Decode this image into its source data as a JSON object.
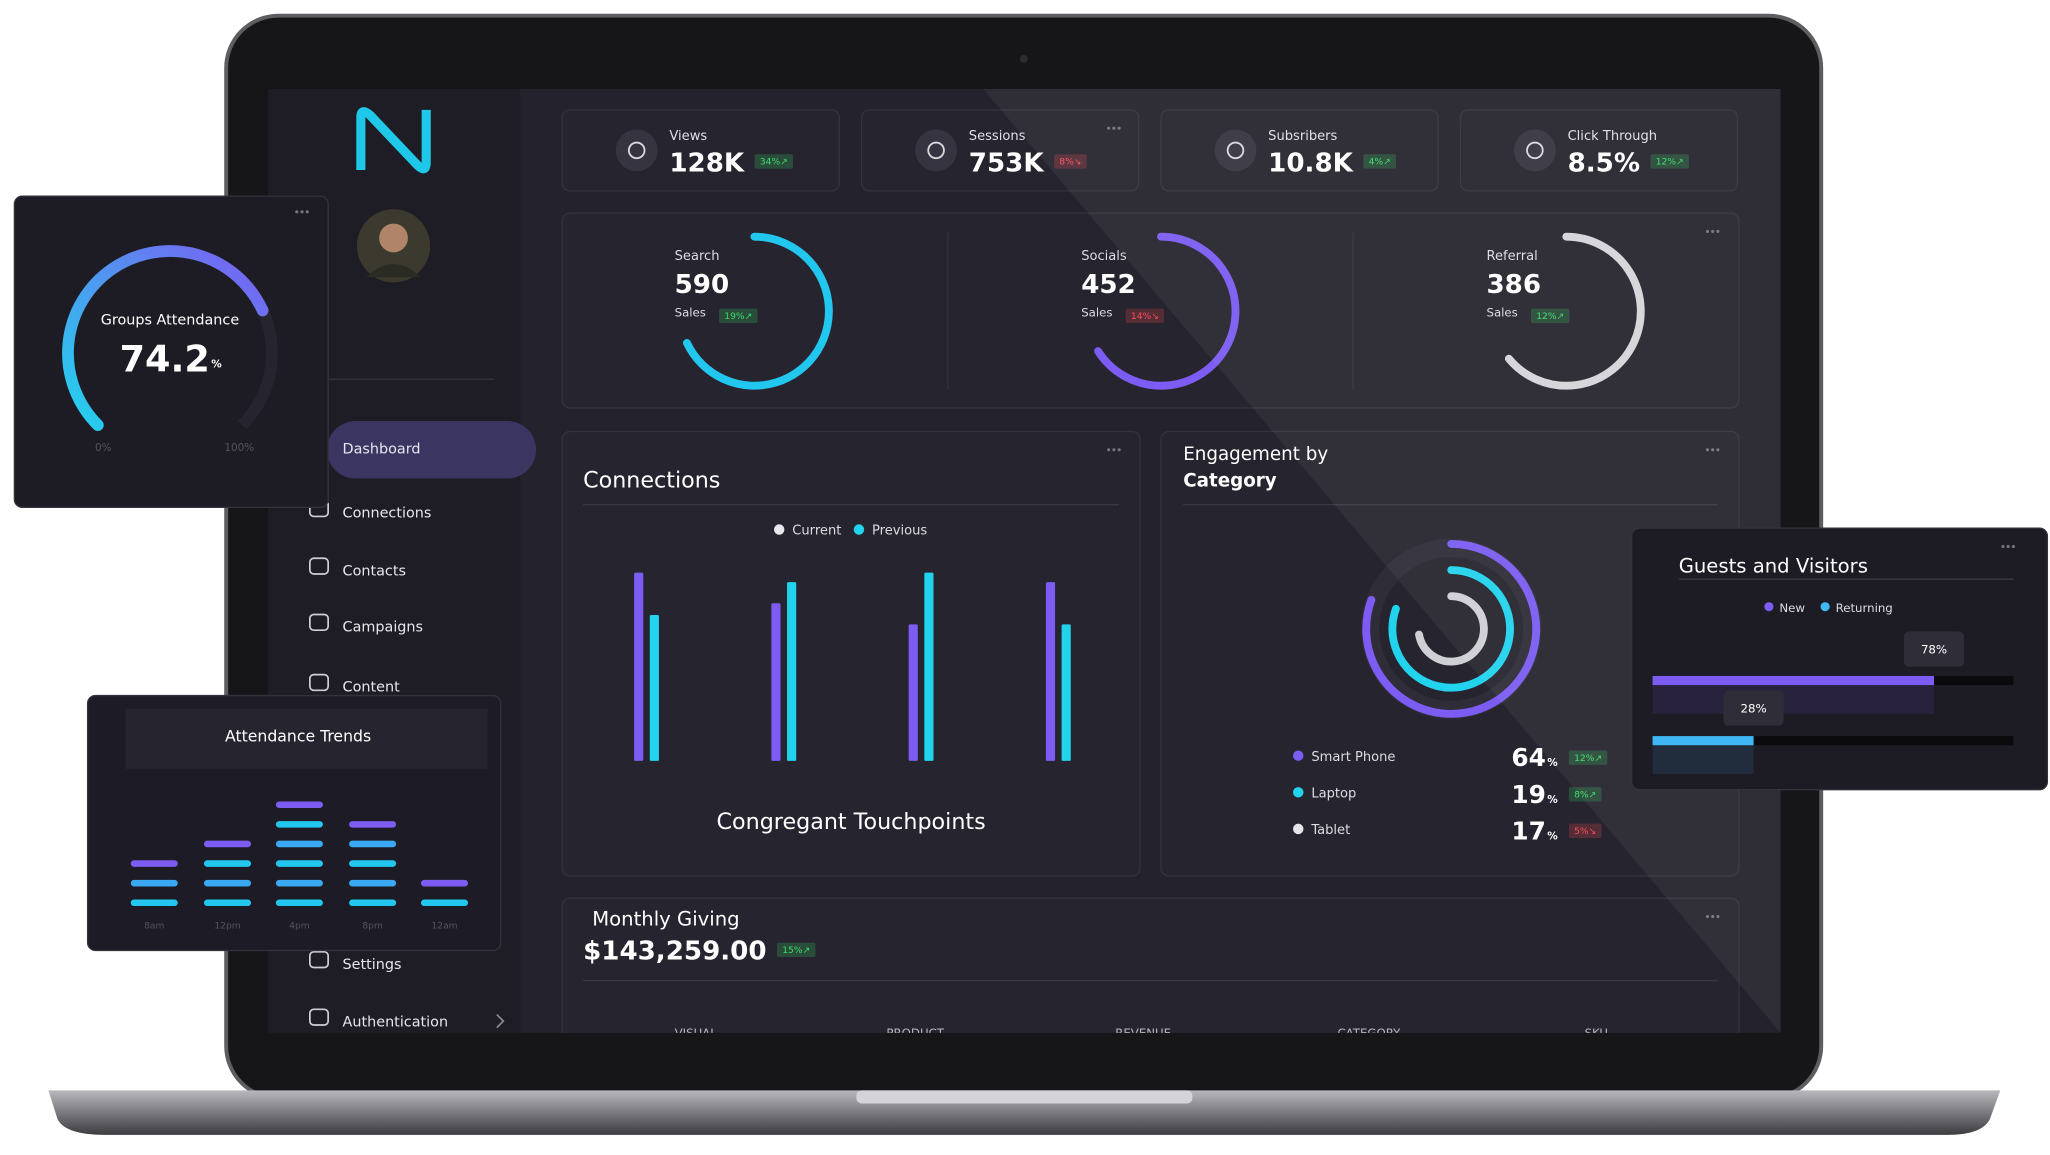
{
  "stats": [
    {
      "label": "Views",
      "value": "128K",
      "change": "34%↗",
      "color": "#3ddc6a"
    },
    {
      "label": "Sessions",
      "value": "753K",
      "change": "8%↘",
      "color": "#ff4d5a"
    },
    {
      "label": "Subsribers",
      "value": "10.8K",
      "change": "4%↗",
      "color": "#3ddc6a"
    },
    {
      "label": "Click Through",
      "value": "8.5%",
      "change": "12%↗",
      "color": "#3ddc6a"
    }
  ],
  "sales": [
    {
      "label": "Search",
      "value": "590",
      "sublabel": "Sales",
      "change": "19%↗",
      "badge_color": "#3ddc6a",
      "ring_color": "#22c7f0",
      "ring": 68
    },
    {
      "label": "Socials",
      "value": "452",
      "sublabel": "Sales",
      "change": "14%↘",
      "badge_color": "#ff4d5a",
      "ring_color": "#7c5cf2",
      "ring": 66
    },
    {
      "label": "Referral",
      "value": "386",
      "sublabel": "Sales",
      "change": "12%↗",
      "badge_color": "#3ddc6a",
      "ring_color": "#d4d4da",
      "ring": 64
    }
  ],
  "sidebar": {
    "menu": [
      "Dashboard",
      "Connections",
      "Contacts",
      "Campaigns",
      "Content",
      "Settings",
      "Authentication"
    ]
  },
  "connections": {
    "title": "Connections",
    "footer": "Congregant Touchpoints",
    "series": [
      {
        "name": "Current",
        "color": "#7c5cf2",
        "values": [
          80,
          67,
          58,
          76
        ]
      },
      {
        "name": "Previous",
        "color": "#22d3ee",
        "values": [
          62,
          76,
          80,
          58
        ]
      }
    ]
  },
  "engagement": {
    "title": [
      "Engagement by",
      "Category"
    ],
    "items": [
      {
        "name": "Smart Phone",
        "value": 64,
        "unit": "%",
        "change": "12%↗",
        "color": "#7c5cf2",
        "badge_color": "#3ddc6a"
      },
      {
        "name": "Laptop",
        "value": 19,
        "unit": "%",
        "change": "8%↗",
        "color": "#22d3ee",
        "badge_color": "#3ddc6a"
      },
      {
        "name": "Tablet",
        "value": 17,
        "unit": "%",
        "change": "5%↘",
        "color": "#e4e4ea",
        "badge_color": "#ff4d5a"
      }
    ]
  },
  "monthly_giving": {
    "title": "Monthly Giving",
    "amount": "$143,259.00",
    "change": "15%↗",
    "badge_color": "#3ddc6a",
    "columns": [
      "VISUAL",
      "PRODUCT",
      "REVENUE",
      "CATEGORY",
      "SKU"
    ]
  },
  "groups_attendance": {
    "title": "Groups Attendance",
    "value": 74.2,
    "unit": "%",
    "min_label": "0%",
    "max_label": "100%"
  },
  "attendance_trends": {
    "title": "Attendance Trends",
    "categories": [
      "8am",
      "12pm",
      "4pm",
      "8pm",
      "12am"
    ],
    "values": [
      3,
      4,
      6,
      5,
      2
    ]
  },
  "guests_visitors": {
    "title": "Guests and Visitors",
    "series": [
      {
        "name": "New",
        "color": "#7c5cf2",
        "value": 78,
        "label": "78%"
      },
      {
        "name": "Returning",
        "color": "#3fb8f5",
        "value": 28,
        "label": "28%"
      }
    ]
  }
}
